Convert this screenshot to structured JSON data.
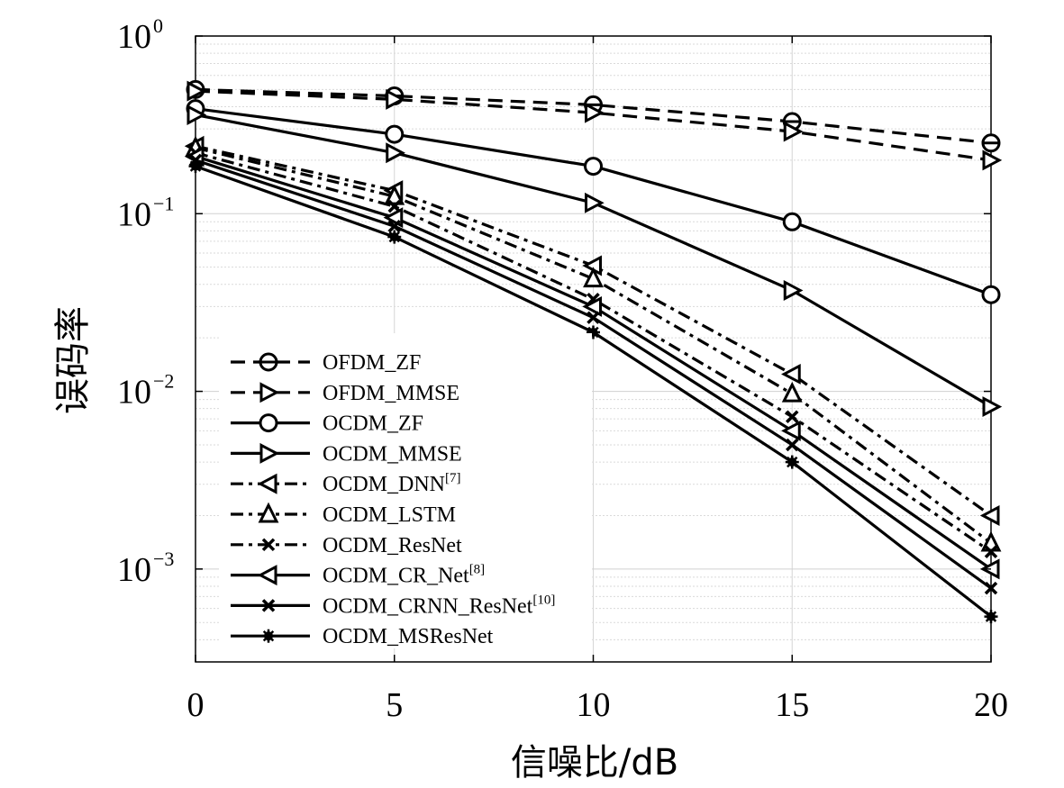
{
  "chart_data": {
    "type": "line",
    "xlabel": "信噪比/dB",
    "ylabel": "误码率",
    "x": [
      0,
      5,
      10,
      15,
      20
    ],
    "xlim": [
      0,
      20
    ],
    "ylim": [
      0.0003,
      1
    ],
    "yscale": "log",
    "grid": true,
    "legend_position": "bottom-left",
    "x_tick_labels": [
      "0",
      "5",
      "10",
      "15",
      "20"
    ],
    "y_ticks": [
      {
        "value": 1,
        "base": "10",
        "exp": "0"
      },
      {
        "value": 0.1,
        "base": "10",
        "exp": "−1"
      },
      {
        "value": 0.01,
        "base": "10",
        "exp": "−2"
      },
      {
        "value": 0.001,
        "base": "10",
        "exp": "−3"
      }
    ],
    "series": [
      {
        "name": "OFDM_ZF",
        "sup": "",
        "line": "dashed",
        "marker": "circle-line",
        "values": [
          0.5,
          0.46,
          0.41,
          0.33,
          0.25
        ]
      },
      {
        "name": "OFDM_MMSE",
        "sup": "",
        "line": "dashed",
        "marker": "triangle-right",
        "values": [
          0.49,
          0.44,
          0.37,
          0.29,
          0.2
        ]
      },
      {
        "name": "OCDM_ZF",
        "sup": "",
        "line": "solid",
        "marker": "circle",
        "values": [
          0.39,
          0.28,
          0.185,
          0.09,
          0.035
        ]
      },
      {
        "name": "OCDM_MMSE",
        "sup": "",
        "line": "solid",
        "marker": "triangle-right",
        "values": [
          0.36,
          0.22,
          0.115,
          0.037,
          0.0082
        ]
      },
      {
        "name": "OCDM_DNN",
        "sup": "[7]",
        "line": "dashdot",
        "marker": "triangle-left",
        "values": [
          0.24,
          0.135,
          0.051,
          0.0125,
          0.002
        ]
      },
      {
        "name": "OCDM_LSTM",
        "sup": "",
        "line": "dashdot",
        "marker": "triangle-up",
        "values": [
          0.235,
          0.125,
          0.043,
          0.0097,
          0.0014
        ]
      },
      {
        "name": "OCDM_ResNet",
        "sup": "",
        "line": "dashdot",
        "marker": "x",
        "values": [
          0.22,
          0.11,
          0.033,
          0.0072,
          0.00125
        ]
      },
      {
        "name": "OCDM_CR_Net",
        "sup": "[8]",
        "line": "solid",
        "marker": "triangle-left",
        "values": [
          0.21,
          0.095,
          0.03,
          0.006,
          0.001
        ]
      },
      {
        "name": "OCDM_CRNN_ResNet",
        "sup": "[10]",
        "line": "solid",
        "marker": "x",
        "values": [
          0.2,
          0.085,
          0.026,
          0.005,
          0.00078
        ]
      },
      {
        "name": "OCDM_MSResNet",
        "sup": "",
        "line": "solid",
        "marker": "star",
        "values": [
          0.185,
          0.074,
          0.0215,
          0.004,
          0.00054
        ]
      }
    ]
  }
}
